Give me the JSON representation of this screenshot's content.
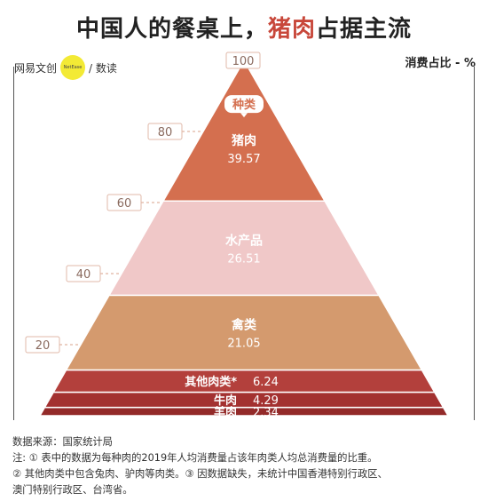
{
  "header": {
    "title_prefix": "中国人的餐桌上，",
    "title_highlight": "猪肉",
    "title_suffix": "占据主流"
  },
  "brand": {
    "name_part1": "网易文创",
    "badge": "NetEase",
    "name_part2": "/ 数读"
  },
  "unit_label": "消费占比 - %",
  "colors": {
    "pork": "#d46f4f",
    "aquatic": "#f0c8c8",
    "poultry": "#d49a6e",
    "other": "#b3403c",
    "beef": "#a33130",
    "mutton": "#932a29",
    "title_highlight": "#c8473a"
  },
  "chart_data": {
    "type": "pyramid",
    "title": "中国人的餐桌上，猪肉占据主流",
    "ylabel": "消费占比 - %",
    "yticks": [
      20,
      40,
      60,
      80,
      100
    ],
    "ylim": [
      0,
      100
    ],
    "category_header": "种类",
    "layers": [
      {
        "name": "羊肉",
        "value": 2.34
      },
      {
        "name": "牛肉",
        "value": 4.29
      },
      {
        "name": "其他肉类*",
        "value": 6.24
      },
      {
        "name": "禽类",
        "value": 21.05
      },
      {
        "name": "水产品",
        "value": 26.51
      },
      {
        "name": "猪肉",
        "value": 39.57
      }
    ]
  },
  "footer": {
    "source": "数据来源：国家统计局",
    "note1": "注: ① 表中的数据为每种肉的2019年人均消费量占该年肉类人均总消费量的比重。",
    "note2": "② 其他肉类中包含兔肉、驴肉等肉类。③ 因数据缺失，未统计中国香港特别行政区、",
    "note3": "澳门特别行政区、台湾省。"
  }
}
